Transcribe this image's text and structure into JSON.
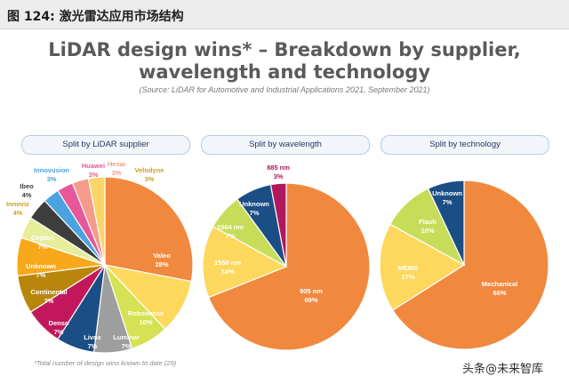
{
  "header": {
    "label": "图 124:  激光雷达应用市场结构"
  },
  "title_line1": "LiDAR design wins* – Breakdown by supplier,",
  "title_line2": "wavelength and technology",
  "source": "(Source: LiDAR for Automotive and Industrial Applications 2021, September 2021)",
  "footnote": "*Total number of design wins known to date (29)",
  "watermark": "头条@未来智库",
  "chart_data": [
    {
      "type": "pie",
      "title": "Split by LiDAR supplier",
      "slices": [
        {
          "name": "Valeo",
          "value": 28,
          "label": "28%",
          "color": "#f0883e"
        },
        {
          "name": "Robosense",
          "value": 10,
          "label": "10%",
          "color": "#fdd85d"
        },
        {
          "name": "Luminar",
          "value": 7,
          "label": "7%",
          "color": "#d5e253"
        },
        {
          "name": "Livox",
          "value": 7,
          "label": "7%",
          "color": "#9e9e9e"
        },
        {
          "name": "Denso",
          "value": 7,
          "label": "7%",
          "color": "#1b4e84"
        },
        {
          "name": "Continental",
          "value": 7,
          "label": "7%",
          "color": "#c2185b"
        },
        {
          "name": "Unknown",
          "value": 7,
          "label": "7%",
          "color": "#b8860b"
        },
        {
          "name": "Cepton",
          "value": 7,
          "label": "7%",
          "color": "#f7a81b"
        },
        {
          "name": "Innoviz",
          "value": 4,
          "label": "4%",
          "color": "#e6ee9c"
        },
        {
          "name": "Ibeo",
          "value": 4,
          "label": "4%",
          "color": "#3d3d3d"
        },
        {
          "name": "Innovusion",
          "value": 3,
          "label": "3%",
          "color": "#4aa3df"
        },
        {
          "name": "Huawei",
          "value": 3,
          "label": "3%",
          "color": "#e8579a"
        },
        {
          "name": "Hesai",
          "value": 3,
          "label": "3%",
          "color": "#f49b8a"
        },
        {
          "name": "Velodyne",
          "value": 3,
          "label": "3%",
          "color": "#fbd569"
        }
      ]
    },
    {
      "type": "pie",
      "title": "Split by wavelength",
      "slices": [
        {
          "name": "905 nm",
          "value": 69,
          "label": "69%",
          "color": "#f0883e"
        },
        {
          "name": "1550 nm",
          "value": 14,
          "label": "14%",
          "color": "#fdd85d"
        },
        {
          "name": "1064 nm",
          "value": 7,
          "label": "7%",
          "color": "#c7dd5a"
        },
        {
          "name": "Unknown",
          "value": 7,
          "label": "7%",
          "color": "#1b4e84"
        },
        {
          "name": "885 nm",
          "value": 3,
          "label": "3%",
          "color": "#b0175f"
        }
      ]
    },
    {
      "type": "pie",
      "title": "Split by technology",
      "slices": [
        {
          "name": "Mechanical",
          "value": 66,
          "label": "66%",
          "color": "#f0883e"
        },
        {
          "name": "MEMS",
          "value": 17,
          "label": "17%",
          "color": "#fdd85d"
        },
        {
          "name": "Flash",
          "value": 10,
          "label": "10%",
          "color": "#c7dd5a"
        },
        {
          "name": "Unknown",
          "value": 7,
          "label": "7%",
          "color": "#1b4e84"
        }
      ]
    }
  ]
}
